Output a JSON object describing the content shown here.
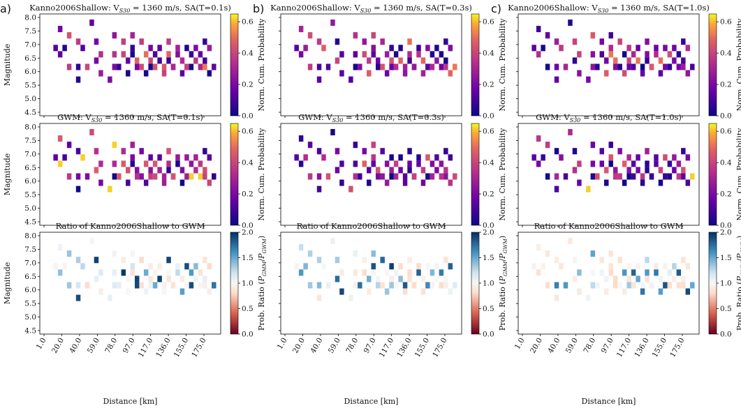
{
  "panel_labels": [
    "a)",
    "b)",
    "c)"
  ],
  "row_kinds": [
    "prob",
    "prob",
    "ratio"
  ],
  "cmap_names": [
    "plasma",
    "plasma",
    "RdBu"
  ],
  "colors": {
    "cell_white": "#ffffff",
    "axes": "#000000"
  },
  "chart_data": [
    {
      "type": "heatmap",
      "title_main": "Kanno2006Shallow: V",
      "title_sub": "S30",
      "title_rest": " = 1360 m/s, SA(T=0.1s)",
      "ylabel": "Magnitude",
      "yticks": [
        "4.5",
        "5.0",
        "5.5",
        "6.0",
        "6.5",
        "7.0",
        "7.5",
        "8.0"
      ],
      "xticks": [],
      "ylim": [
        4.5,
        8.0
      ],
      "xlim": [
        1,
        190
      ],
      "colorbar": {
        "label": "Norm. Cum. Probability",
        "ticks": [
          "0.0",
          "0.2",
          "0.4",
          "0.6"
        ],
        "range": [
          0,
          0.65
        ]
      },
      "seed": 11
    },
    {
      "type": "heatmap",
      "title_main": "Kanno2006Shallow: V",
      "title_sub": "S30",
      "title_rest": " = 1360 m/s, SA(T=0.3s)",
      "ylabel": "",
      "yticks": [],
      "xticks": [],
      "ylim": [
        4.5,
        8.0
      ],
      "xlim": [
        1,
        190
      ],
      "colorbar": {
        "label": "Norm. Cum. Probability",
        "ticks": [
          "0.0",
          "0.2",
          "0.4",
          "0.6"
        ],
        "range": [
          0,
          0.65
        ]
      },
      "seed": 23
    },
    {
      "type": "heatmap",
      "title_main": "Kanno2006Shallow: V",
      "title_sub": "S30",
      "title_rest": " = 1360 m/s, SA(T=1.0s)",
      "ylabel": "",
      "yticks": [],
      "xticks": [],
      "ylim": [
        4.5,
        8.0
      ],
      "xlim": [
        1,
        190
      ],
      "colorbar": {
        "label": "Norm. Cum. Probability",
        "ticks": [
          "0.0",
          "0.2",
          "0.4",
          "0.6"
        ],
        "range": [
          0,
          0.65
        ]
      },
      "seed": 37
    },
    {
      "type": "heatmap",
      "title_main": "GWM: V",
      "title_sub": "S30",
      "title_rest": " = 1360 m/s, SA(T=0.1s)",
      "ylabel": "Magnitude",
      "yticks": [
        "4.5",
        "5.0",
        "5.5",
        "6.0",
        "6.5",
        "7.0",
        "7.5",
        "8.0"
      ],
      "xticks": [],
      "ylim": [
        4.5,
        8.0
      ],
      "xlim": [
        1,
        190
      ],
      "colorbar": {
        "label": "Norm. Cum. Probability",
        "ticks": [
          "0.0",
          "0.2",
          "0.4",
          "0.6"
        ],
        "range": [
          0,
          0.65
        ]
      },
      "seed": 41
    },
    {
      "type": "heatmap",
      "title_main": "GWM: V",
      "title_sub": "S30",
      "title_rest": " = 1360 m/s, SA(T=0.3s)",
      "ylabel": "",
      "yticks": [],
      "xticks": [],
      "ylim": [
        4.5,
        8.0
      ],
      "xlim": [
        1,
        190
      ],
      "colorbar": {
        "label": "Norm. Cum. Probability",
        "ticks": [
          "0.0",
          "0.2",
          "0.4",
          "0.6"
        ],
        "range": [
          0,
          0.65
        ]
      },
      "seed": 53
    },
    {
      "type": "heatmap",
      "title_main": "GWM: V",
      "title_sub": "S30",
      "title_rest": " = 1360 m/s, SA(T=1.0s)",
      "ylabel": "",
      "yticks": [],
      "xticks": [],
      "ylim": [
        4.5,
        8.0
      ],
      "xlim": [
        1,
        190
      ],
      "colorbar": {
        "label": "Norm. Cum. Probability",
        "ticks": [
          "0.0",
          "0.2",
          "0.4",
          "0.6"
        ],
        "range": [
          0,
          0.65
        ]
      },
      "seed": 67
    },
    {
      "type": "heatmap",
      "title_main": "Ratio of Kanno2006Shallow to GWM",
      "title_sub": "",
      "title_rest": "",
      "ylabel": "Magnitude",
      "yticks": [
        "4.5",
        "5.0",
        "5.5",
        "6.0",
        "6.5",
        "7.0",
        "7.5",
        "8.0"
      ],
      "xticks": [
        "1.0",
        "20.0",
        "40.0",
        "59.0",
        "78.0",
        "97.0",
        "117.0",
        "136.0",
        "155.0",
        "175.0"
      ],
      "xlabel": "Distance [km]",
      "ylim": [
        4.5,
        8.0
      ],
      "xlim": [
        1,
        190
      ],
      "colorbar": {
        "label": "Prob. Ratio (P_GMM/P_GWM)",
        "label_main": "Prob. Ratio (",
        "label_p1": "P",
        "label_s1": "GMM",
        "label_mid": "/",
        "label_p2": "P",
        "label_s2": "GWM",
        "label_end": ")",
        "ticks": [
          "0.0",
          "0.5",
          "1.0",
          "1.5",
          "2.0"
        ],
        "range": [
          0,
          2
        ]
      },
      "seed": 71
    },
    {
      "type": "heatmap",
      "title_main": "Ratio of Kanno2006Shallow to GWM",
      "title_sub": "",
      "title_rest": "",
      "ylabel": "",
      "yticks": [],
      "xticks": [
        "1.0",
        "20.0",
        "40.0",
        "59.0",
        "78.0",
        "97.0",
        "117.0",
        "136.0",
        "155.0",
        "175.0"
      ],
      "xlabel": "Distance [km]",
      "ylim": [
        4.5,
        8.0
      ],
      "xlim": [
        1,
        190
      ],
      "colorbar": {
        "label": "Prob. Ratio (P_GMM/P_GWM)",
        "label_main": "Prob. Ratio (",
        "label_p1": "P",
        "label_s1": "GMM",
        "label_mid": "/",
        "label_p2": "P",
        "label_s2": "GWM",
        "label_end": ")",
        "ticks": [
          "0.0",
          "0.5",
          "1.0",
          "1.5",
          "2.0"
        ],
        "range": [
          0,
          2
        ]
      },
      "seed": 83
    },
    {
      "type": "heatmap",
      "title_main": "Ratio of Kanno2006Shallow to GWM",
      "title_sub": "",
      "title_rest": "",
      "ylabel": "",
      "yticks": [],
      "xticks": [
        "1.0",
        "20.0",
        "40.0",
        "59.0",
        "78.0",
        "97.0",
        "117.0",
        "136.0",
        "155.0",
        "175.0"
      ],
      "xlabel": "Distance [km]",
      "ylim": [
        4.5,
        8.0
      ],
      "xlim": [
        1,
        190
      ],
      "colorbar": {
        "label": "Prob. Ratio (P_GMM/P_GWM)",
        "label_main": "Prob. Ratio (",
        "label_p1": "P",
        "label_s1": "GMM",
        "label_mid": "/",
        "label_p2": "P",
        "label_s2": "GWM",
        "label_end": ")",
        "ticks": [
          "0.0",
          "0.5",
          "1.0",
          "1.5",
          "2.0"
        ],
        "range": [
          0,
          2
        ]
      },
      "seed": 97
    }
  ],
  "grid_bins": {
    "distance_bins": 40,
    "magnitude_bins": 15,
    "cells": [
      [
        7,
        12
      ],
      [
        10,
        11
      ],
      [
        11,
        15
      ],
      [
        12,
        12
      ],
      [
        14,
        9
      ],
      [
        15,
        14
      ],
      [
        18,
        6
      ],
      [
        19,
        13
      ],
      [
        20,
        9
      ],
      [
        22,
        12
      ],
      [
        24,
        9
      ],
      [
        25,
        16
      ],
      [
        27,
        13
      ],
      [
        28,
        10
      ],
      [
        30,
        7
      ],
      [
        31,
        11
      ],
      [
        34,
        6
      ],
      [
        36,
        14
      ],
      [
        37,
        11
      ],
      [
        38,
        9
      ],
      [
        40,
        8
      ],
      [
        41,
        13
      ],
      [
        42,
        11
      ],
      [
        43,
        7
      ],
      [
        44,
        10
      ],
      [
        45,
        12
      ],
      [
        46,
        14
      ],
      [
        47,
        11
      ],
      [
        48,
        8
      ],
      [
        49,
        10
      ],
      [
        50,
        9
      ],
      [
        51,
        13
      ],
      [
        52,
        11
      ],
      [
        53,
        7
      ],
      [
        54,
        12
      ],
      [
        55,
        10
      ],
      [
        56,
        9
      ],
      [
        57,
        11
      ],
      [
        58,
        8
      ],
      [
        59,
        10
      ],
      [
        60,
        12
      ],
      [
        61,
        9
      ],
      [
        62,
        7
      ],
      [
        63,
        11
      ],
      [
        64,
        13
      ],
      [
        65,
        10
      ],
      [
        66,
        8
      ],
      [
        67,
        9
      ],
      [
        68,
        12
      ],
      [
        69,
        11
      ],
      [
        70,
        7
      ],
      [
        71,
        10
      ],
      [
        72,
        9
      ],
      [
        73,
        12
      ],
      [
        74,
        8
      ],
      [
        75,
        11
      ],
      [
        76,
        9
      ],
      [
        77,
        10
      ],
      [
        78,
        12
      ],
      [
        79,
        8
      ],
      [
        80,
        11
      ],
      [
        81,
        9
      ],
      [
        82,
        13
      ],
      [
        83,
        10
      ],
      [
        84,
        7
      ],
      [
        85,
        12
      ],
      [
        86,
        9
      ]
    ]
  }
}
